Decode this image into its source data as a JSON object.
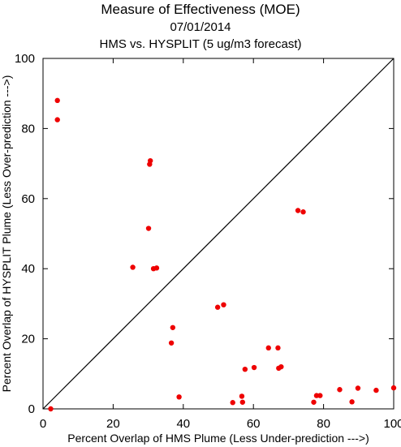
{
  "chart_data": {
    "type": "scatter",
    "title": "Measure of Effectiveness (MOE)",
    "date": "07/01/2014",
    "subtitle": "HMS vs. HYSPLIT  (5 ug/m3 forecast)",
    "xlabel": "Percent Overlap of HMS Plume (Less Under-prediction --->)",
    "ylabel": "Percent Overlap of HYSPLIT Plume (Less Over-prediction --->)",
    "xlim": [
      0,
      100
    ],
    "ylim": [
      0,
      100
    ],
    "x_ticks": [
      "0",
      "20",
      "40",
      "60",
      "80",
      "100"
    ],
    "y_ticks": [
      "0",
      "20",
      "40",
      "60",
      "80",
      "100"
    ],
    "reference_line": "diagonal y = x",
    "grid": false,
    "marker_color": "#ee0000",
    "points": [
      {
        "x": 2.2,
        "y": 0.0
      },
      {
        "x": 4.1,
        "y": 88.0
      },
      {
        "x": 4.1,
        "y": 82.5
      },
      {
        "x": 25.6,
        "y": 40.4
      },
      {
        "x": 30.1,
        "y": 51.5
      },
      {
        "x": 30.4,
        "y": 69.8
      },
      {
        "x": 30.6,
        "y": 70.8
      },
      {
        "x": 31.5,
        "y": 40.0
      },
      {
        "x": 32.4,
        "y": 40.2
      },
      {
        "x": 36.6,
        "y": 18.8
      },
      {
        "x": 37.0,
        "y": 23.2
      },
      {
        "x": 38.8,
        "y": 3.4
      },
      {
        "x": 49.8,
        "y": 29.0
      },
      {
        "x": 51.5,
        "y": 29.7
      },
      {
        "x": 54.1,
        "y": 1.8
      },
      {
        "x": 56.7,
        "y": 3.6
      },
      {
        "x": 56.9,
        "y": 1.9
      },
      {
        "x": 57.6,
        "y": 11.3
      },
      {
        "x": 60.2,
        "y": 11.8
      },
      {
        "x": 64.3,
        "y": 17.4
      },
      {
        "x": 67.0,
        "y": 17.4
      },
      {
        "x": 67.2,
        "y": 11.6
      },
      {
        "x": 67.9,
        "y": 12.0
      },
      {
        "x": 72.7,
        "y": 56.6
      },
      {
        "x": 74.2,
        "y": 56.2
      },
      {
        "x": 77.2,
        "y": 1.9
      },
      {
        "x": 78.0,
        "y": 3.8
      },
      {
        "x": 79.0,
        "y": 3.8
      },
      {
        "x": 84.6,
        "y": 5.5
      },
      {
        "x": 88.1,
        "y": 2.0
      },
      {
        "x": 89.8,
        "y": 5.9
      },
      {
        "x": 95.0,
        "y": 5.3
      },
      {
        "x": 100.0,
        "y": 6.0
      }
    ]
  }
}
